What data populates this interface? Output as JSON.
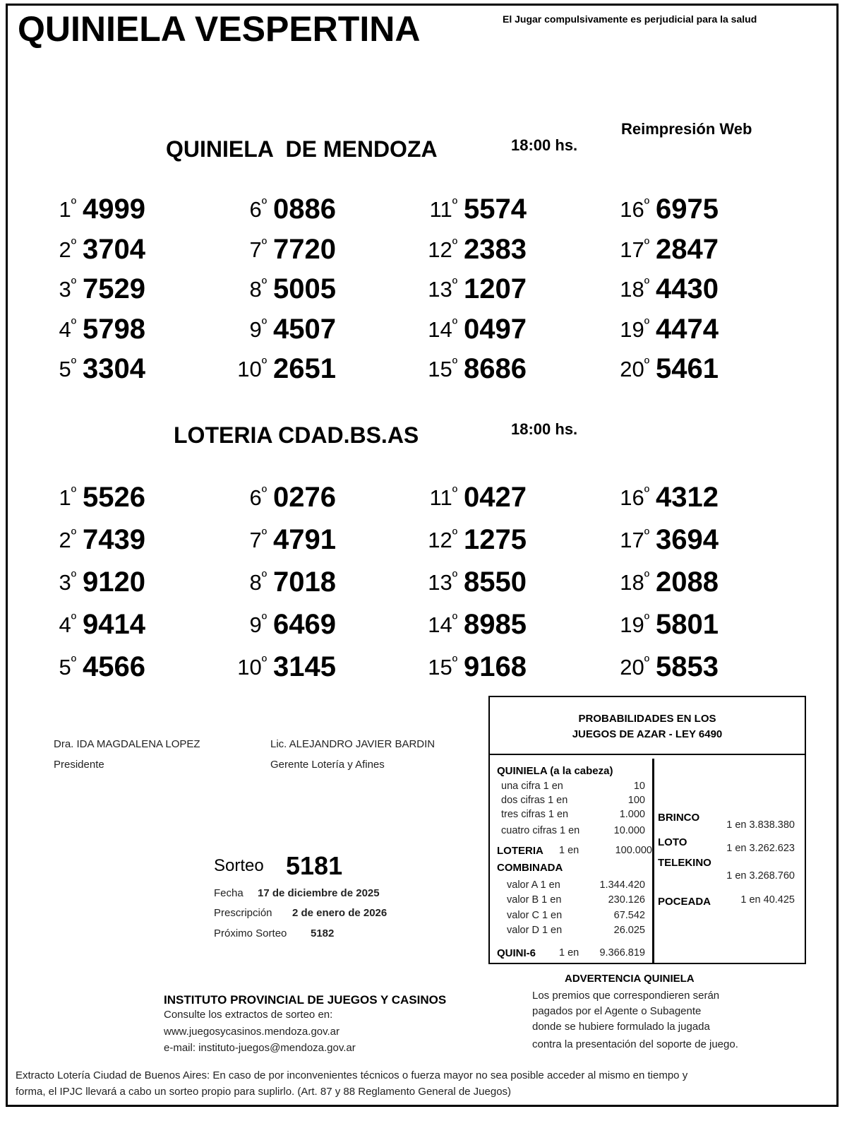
{
  "header": {
    "title": "QUINIELA VESPERTINA",
    "warning": "El Jugar compulsivamente es perjudicial para la salud",
    "reprint": "Reimpresión Web"
  },
  "mendoza": {
    "title": "QUINIELA  DE MENDOZA",
    "time": "18:00 hs.",
    "results": [
      {
        "pos": "1",
        "num": "4999"
      },
      {
        "pos": "2",
        "num": "3704"
      },
      {
        "pos": "3",
        "num": "7529"
      },
      {
        "pos": "4",
        "num": "5798"
      },
      {
        "pos": "5",
        "num": "3304"
      },
      {
        "pos": "6",
        "num": "0886"
      },
      {
        "pos": "7",
        "num": "7720"
      },
      {
        "pos": "8",
        "num": "5005"
      },
      {
        "pos": "9",
        "num": "4507"
      },
      {
        "pos": "10",
        "num": "2651"
      },
      {
        "pos": "11",
        "num": "5574"
      },
      {
        "pos": "12",
        "num": "2383"
      },
      {
        "pos": "13",
        "num": "1207"
      },
      {
        "pos": "14",
        "num": "0497"
      },
      {
        "pos": "15",
        "num": "8686"
      },
      {
        "pos": "16",
        "num": "6975"
      },
      {
        "pos": "17",
        "num": "2847"
      },
      {
        "pos": "18",
        "num": "4430"
      },
      {
        "pos": "19",
        "num": "4474"
      },
      {
        "pos": "20",
        "num": "5461"
      }
    ]
  },
  "bsas": {
    "title": "LOTERIA CDAD.BS.AS",
    "time": "18:00 hs.",
    "results": [
      {
        "pos": "1",
        "num": "5526"
      },
      {
        "pos": "2",
        "num": "7439"
      },
      {
        "pos": "3",
        "num": "9120"
      },
      {
        "pos": "4",
        "num": "9414"
      },
      {
        "pos": "5",
        "num": "4566"
      },
      {
        "pos": "6",
        "num": "0276"
      },
      {
        "pos": "7",
        "num": "4791"
      },
      {
        "pos": "8",
        "num": "7018"
      },
      {
        "pos": "9",
        "num": "6469"
      },
      {
        "pos": "10",
        "num": "3145"
      },
      {
        "pos": "11",
        "num": "0427"
      },
      {
        "pos": "12",
        "num": "1275"
      },
      {
        "pos": "13",
        "num": "8550"
      },
      {
        "pos": "14",
        "num": "8985"
      },
      {
        "pos": "15",
        "num": "9168"
      },
      {
        "pos": "16",
        "num": "4312"
      },
      {
        "pos": "17",
        "num": "3694"
      },
      {
        "pos": "18",
        "num": "2088"
      },
      {
        "pos": "19",
        "num": "5801"
      },
      {
        "pos": "20",
        "num": "5853"
      }
    ]
  },
  "ordinal_suffix": "º",
  "signatures": [
    {
      "name": "Dra. IDA MAGDALENA LOPEZ",
      "role": "Presidente"
    },
    {
      "name": "Lic. ALEJANDRO JAVIER BARDIN",
      "role": "Gerente Lotería y Afines"
    }
  ],
  "draw": {
    "sorteo_label": "Sorteo",
    "sorteo": "5181",
    "fecha_label": "Fecha",
    "fecha": "17 de diciembre de 2025",
    "prescripcion_label": "Prescripción",
    "prescripcion": "2 de enero de 2026",
    "proximo_label": "Próximo Sorteo",
    "proximo": "5182"
  },
  "probabilities": {
    "title_line1": "PROBABILIDADES EN LOS",
    "title_line2": "JUEGOS DE AZAR - LEY 6490",
    "quiniela_title": "QUINIELA (a la cabeza)",
    "quiniela": [
      {
        "label": "una cifra  1 en",
        "value": "10"
      },
      {
        "label": "dos cifras 1 en",
        "value": "100"
      },
      {
        "label": "tres cifras 1 en",
        "value": "1.000"
      },
      {
        "label": "cuatro cifras 1 en",
        "value": "10.000"
      }
    ],
    "loteria_label": "LOTERIA",
    "loteria_en": "1 en",
    "loteria_value": "100.000",
    "combinada_title": "COMBINADA",
    "combinada": [
      {
        "label": "valor A 1 en",
        "value": "1.344.420"
      },
      {
        "label": "valor B 1 en",
        "value": "230.126"
      },
      {
        "label": "valor C 1 en",
        "value": "67.542"
      },
      {
        "label": "valor D 1 en",
        "value": "26.025"
      }
    ],
    "quini6_label": "QUINI-6",
    "quini6_en": "1 en",
    "quini6_value": "9.366.819",
    "brinco_label": "BRINCO",
    "brinco_value": "1 en 3.838.380",
    "loto_label": "LOTO",
    "loto_value": "1 en 3.262.623",
    "telekino_label": "TELEKINO",
    "telekino_value": "1 en 3.268.760",
    "poceada_label": "POCEADA",
    "poceada_value": "1 en 40.425"
  },
  "advertencia": {
    "title": "ADVERTENCIA QUINIELA",
    "lines": [
      "Los premios que correspondieren serán",
      "pagados por el Agente o Subagente",
      "donde se hubiere formulado la jugada",
      "contra la presentación del soporte de juego."
    ]
  },
  "institute": {
    "name": "INSTITUTO PROVINCIAL DE JUEGOS Y CASINOS",
    "consult": "Consulte los extractos de sorteo en:",
    "web": "www.juegosycasinos.mendoza.gov.ar",
    "email": "e-mail:  instituto-juegos@mendoza.gov.ar"
  },
  "footer": {
    "line1": "Extracto Lotería Ciudad de Buenos Aires: En caso de por inconvenientes técnicos o fuerza mayor no sea posible acceder al mismo en tiempo y",
    "line2": "forma, el IPJC llevará a cabo un sorteo propio para suplirlo. (Art. 87 y 88 Reglamento General de Juegos)"
  }
}
